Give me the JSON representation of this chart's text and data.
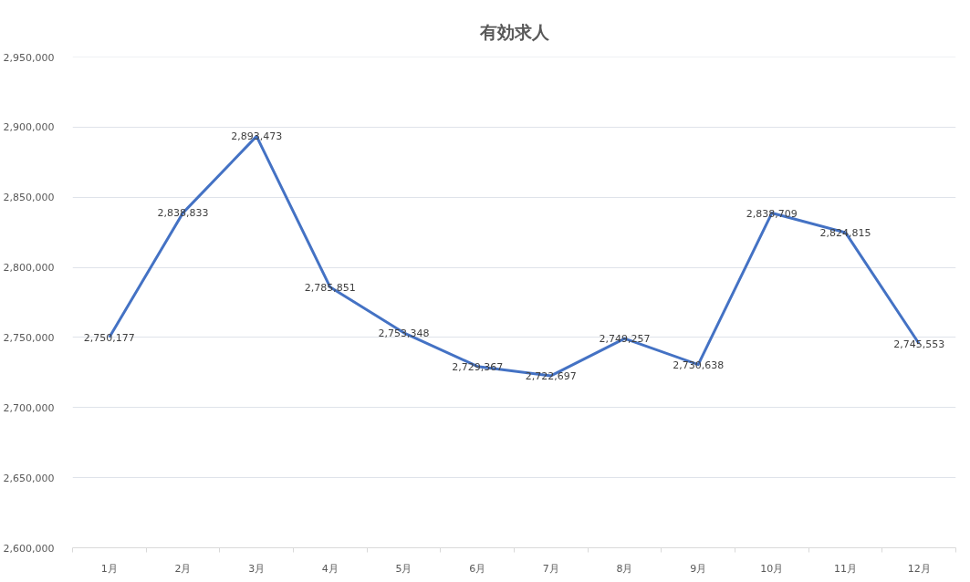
{
  "chart_data": {
    "type": "line",
    "title": "有効求人",
    "categories": [
      "1月",
      "2月",
      "3月",
      "4月",
      "5月",
      "6月",
      "7月",
      "8月",
      "9月",
      "10月",
      "11月",
      "12月"
    ],
    "series": [
      {
        "color": "#4472c4",
        "values": [
          2750177,
          2838833,
          2893473,
          2785851,
          2753348,
          2729367,
          2722697,
          2749257,
          2730638,
          2838709,
          2824815,
          2745553
        ],
        "value_labels": [
          "2,750,177",
          "2,838,833",
          "2,893,473",
          "2,785,851",
          "2,753,348",
          "2,729,367",
          "2,722,697",
          "2,749,257",
          "2,730,638",
          "2,838,709",
          "2,824,815",
          "2,745,553"
        ]
      }
    ],
    "ylim": [
      2600000,
      2950000
    ],
    "yticks": [
      {
        "value": 2600000,
        "label": "2,600,000"
      },
      {
        "value": 2650000,
        "label": "2,650,000"
      },
      {
        "value": 2700000,
        "label": "2,700,000"
      },
      {
        "value": 2750000,
        "label": "2,750,000"
      },
      {
        "value": 2800000,
        "label": "2,800,000"
      },
      {
        "value": 2850000,
        "label": "2,850,000"
      },
      {
        "value": 2900000,
        "label": "2,900,000"
      },
      {
        "value": 2950000,
        "label": "2,950,000"
      }
    ],
    "grid": "y",
    "line_style": "solid"
  }
}
